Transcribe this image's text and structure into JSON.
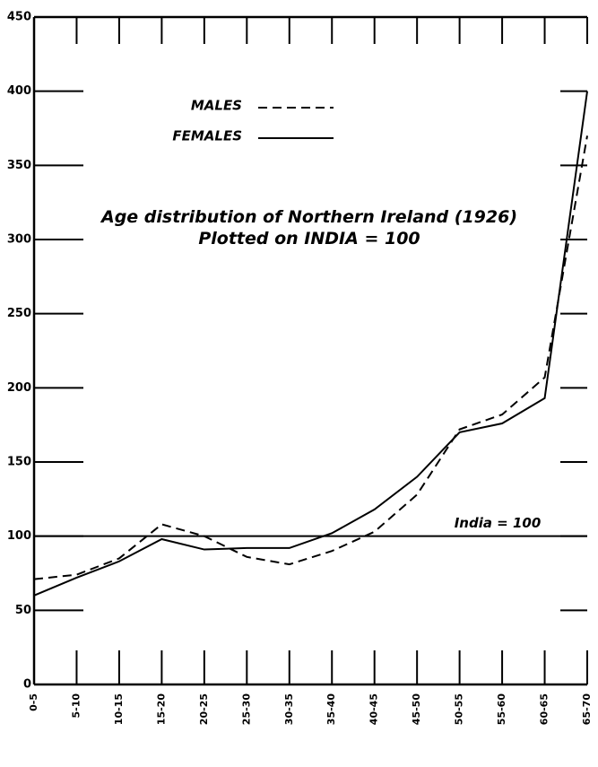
{
  "chart_data": {
    "type": "line",
    "title": "Age distribution of Northern Ireland (1926)",
    "subtitle": "Plotted on INDIA = 100",
    "categories": [
      "0-5",
      "5-10",
      "10-15",
      "15-20",
      "20-25",
      "25-30",
      "30-35",
      "35-40",
      "40-45",
      "45-50",
      "50-55",
      "55-60",
      "60-65",
      "65-70"
    ],
    "series": [
      {
        "name": "MALES",
        "color": "#000000",
        "dash": true,
        "values": [
          71,
          74,
          85,
          108,
          100,
          86,
          81,
          90,
          103,
          128,
          172,
          182,
          207,
          370
        ]
      },
      {
        "name": "FEMALES",
        "color": "#000000",
        "dash": false,
        "values": [
          60,
          72,
          83,
          98,
          91,
          92,
          92,
          102,
          118,
          140,
          170,
          176,
          193,
          400
        ]
      }
    ],
    "reference_line": {
      "value": 100,
      "label": "India = 100"
    },
    "ylim": [
      0,
      450
    ],
    "yticks": [
      0,
      50,
      100,
      150,
      200,
      250,
      300,
      350,
      400,
      450
    ]
  }
}
